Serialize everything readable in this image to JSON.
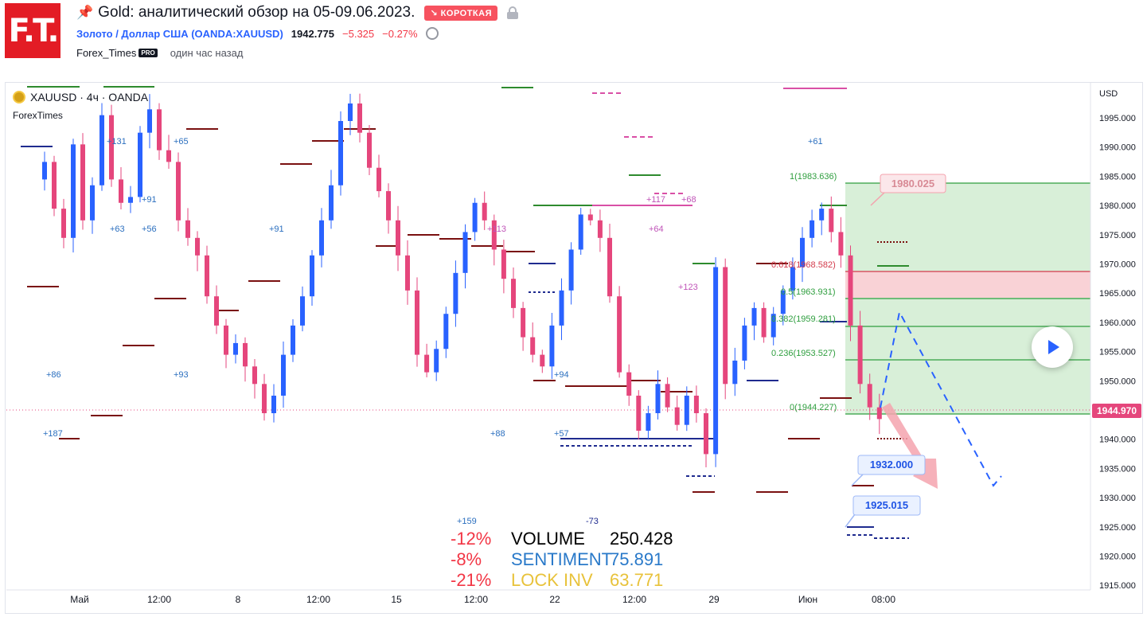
{
  "header": {
    "logo_text": "F.T.",
    "title": "Gold: аналитический обзор на 05-09.06.2023.",
    "badge": "↘ КОРОТКАЯ",
    "symbol_link": "Золото / Доллар США (OANDA:XAUUSD)",
    "price": "1942.775",
    "change": "−5.325",
    "change_pct": "−0.27%",
    "author": "Forex_Times",
    "pro_badge": "PRO",
    "time_ago": "один час назад"
  },
  "legend": {
    "symbol": "XAUUSD · 4ч · OANDA",
    "author_label": "ForexTimes"
  },
  "axis": {
    "currency": "USD",
    "y_ticks": [
      "1995.000",
      "1990.000",
      "1985.000",
      "1980.000",
      "1975.000",
      "1970.000",
      "1965.000",
      "1960.000",
      "1955.000",
      "1950.000",
      "1945.000",
      "1940.000",
      "1935.000",
      "1930.000",
      "1925.000",
      "1920.000",
      "1915.000"
    ],
    "x_ticks": [
      "Май",
      "12:00",
      "8",
      "12:00",
      "15",
      "12:00",
      "22",
      "12:00",
      "29",
      "Июн",
      "08:00"
    ],
    "current_price": "1944.970"
  },
  "fib": {
    "l1": "1(1983.636)",
    "l618": "0.618(1968.582)",
    "l5": "0.5(1963.931)",
    "l382": "0.382(1959.281)",
    "l236": "0.236(1953.527)",
    "l0": "0(1944.227)"
  },
  "callouts": {
    "top": "1980.025",
    "mid": "1932.000",
    "low": "1925.015"
  },
  "annotations": [
    "+131",
    "+65",
    "+91",
    "+63",
    "+56",
    "+91",
    "+86",
    "+93",
    "+187",
    "+88",
    "+57",
    "+94",
    "+113",
    "+117",
    "+68",
    "+64",
    "+123",
    "+61",
    "+159",
    "-73"
  ],
  "stats": {
    "rows": [
      {
        "pct": "-12%",
        "label": "VOLUME",
        "value": "250.428",
        "color": "#000000"
      },
      {
        "pct": "-8%",
        "label": "SENTIMENT",
        "value": "75.891",
        "color": "#2979c9"
      },
      {
        "pct": "-21%",
        "label": "LOCK INV",
        "value": "63.771",
        "color": "#e8c23a"
      }
    ]
  },
  "colors": {
    "up": "#2962ff",
    "down": "#e5467c",
    "fib_zone": "#d8efd8",
    "red_zone": "#f9d2d6"
  }
}
